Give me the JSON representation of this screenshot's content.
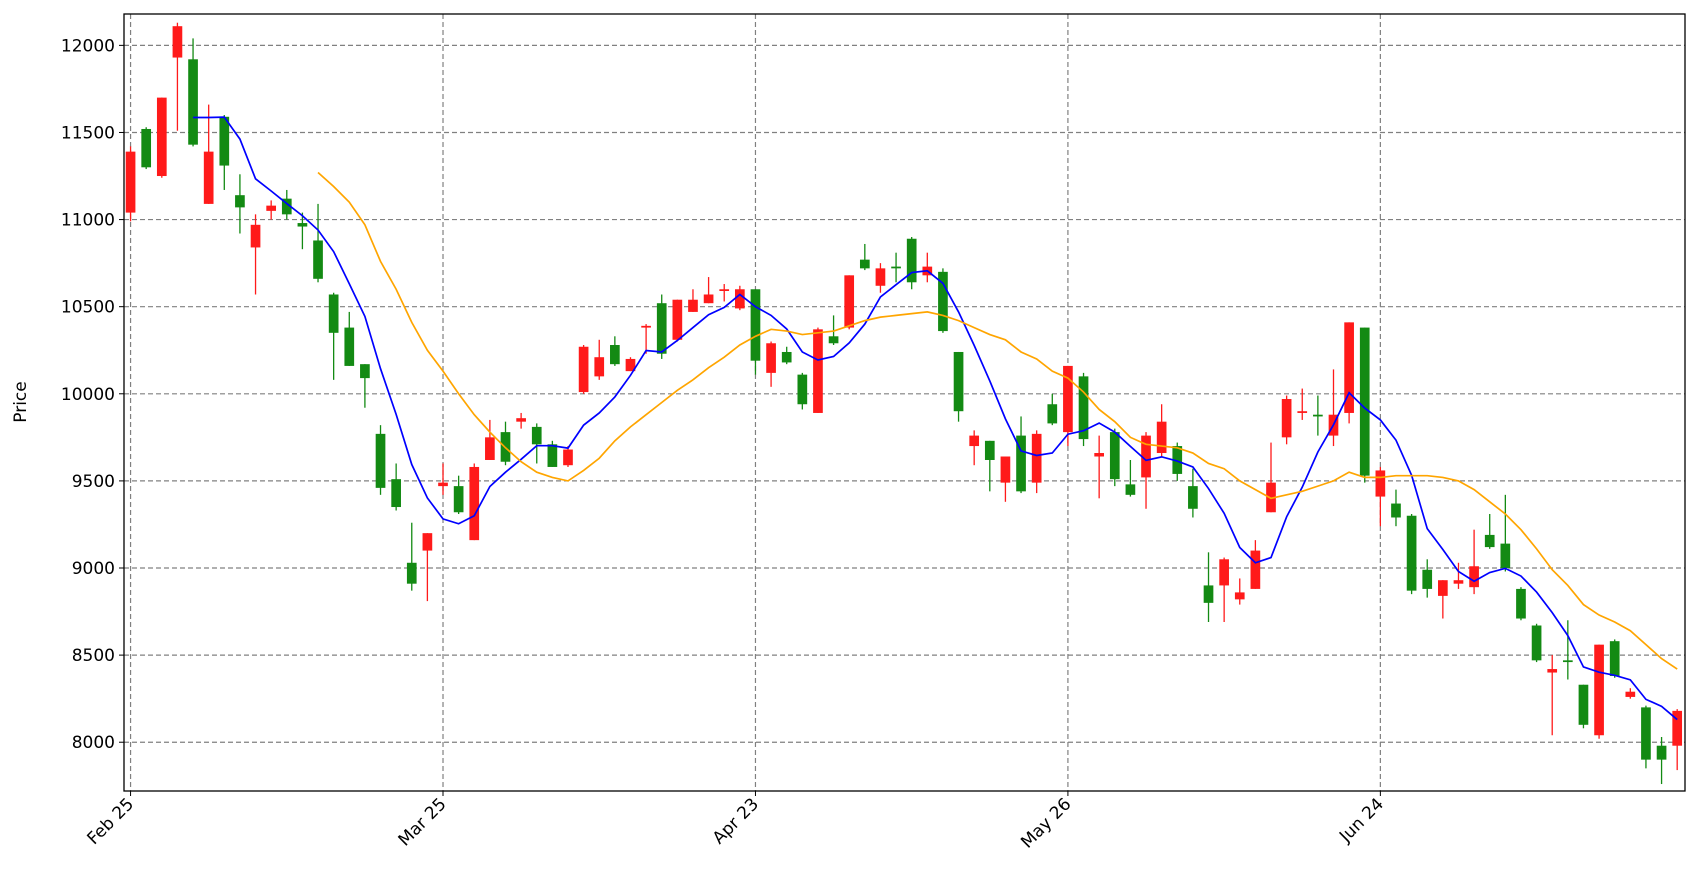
{
  "chart_data": {
    "type": "candlestick",
    "y_label": "Price",
    "categories": [
      "Feb 25",
      null,
      null,
      null,
      null,
      null,
      null,
      null,
      null,
      null,
      null,
      null,
      null,
      null,
      null,
      null,
      null,
      null,
      null,
      null,
      "Mar 25",
      null,
      null,
      null,
      null,
      null,
      null,
      null,
      null,
      null,
      null,
      null,
      null,
      null,
      null,
      null,
      null,
      null,
      null,
      null,
      "Apr 23",
      null,
      null,
      null,
      null,
      null,
      null,
      null,
      null,
      null,
      null,
      null,
      null,
      null,
      null,
      null,
      null,
      null,
      null,
      null,
      "May 26",
      null,
      null,
      null,
      null,
      null,
      null,
      null,
      null,
      null,
      null,
      null,
      null,
      null,
      null,
      null,
      null,
      null,
      null,
      null,
      "Jun 24",
      null,
      null,
      null,
      null,
      null,
      null,
      null,
      null,
      null,
      null,
      null,
      null,
      null,
      null,
      null,
      null,
      null,
      null,
      null
    ],
    "open": [
      11040,
      11520,
      11250,
      11930,
      11920,
      11090,
      11590,
      11140,
      10840,
      11050,
      11120,
      10980,
      10880,
      10570,
      10380,
      10170,
      9770,
      9510,
      9030,
      9100,
      9470,
      9470,
      9160,
      9620,
      9780,
      9840,
      9810,
      9710,
      9590,
      10010,
      10100,
      10280,
      10130,
      10380,
      10520,
      10310,
      10470,
      10520,
      10590,
      10490,
      10600,
      10120,
      10240,
      10110,
      9890,
      10330,
      10380,
      10770,
      10620,
      10730,
      10890,
      10680,
      10700,
      10240,
      9700,
      9730,
      9490,
      9760,
      9490,
      9940,
      9780,
      10100,
      9640,
      9780,
      9480,
      9520,
      9660,
      9700,
      9470,
      8900,
      8900,
      8820,
      8880,
      9320,
      9750,
      9890,
      9880,
      9760,
      9890,
      10380,
      9410,
      9370,
      9300,
      8990,
      8840,
      8910,
      8890,
      9190,
      9140,
      8880,
      8670,
      8400,
      8470,
      8330,
      8040,
      8580,
      8260,
      8200,
      7980,
      7980
    ],
    "high": [
      11420,
      11530,
      11700,
      12130,
      12040,
      11660,
      11600,
      11260,
      11030,
      11110,
      11170,
      11040,
      11090,
      10580,
      10470,
      10170,
      9820,
      9600,
      9260,
      9200,
      9600,
      9530,
      9600,
      9850,
      9840,
      9890,
      9830,
      9730,
      9700,
      10280,
      10310,
      10330,
      10210,
      10400,
      10570,
      10540,
      10600,
      10670,
      10630,
      10620,
      10600,
      10300,
      10270,
      10120,
      10380,
      10450,
      10680,
      10860,
      10750,
      10810,
      10900,
      10810,
      10720,
      10240,
      9790,
      9730,
      9640,
      9870,
      9790,
      10000,
      10160,
      10120,
      9760,
      9800,
      9620,
      9780,
      9940,
      9720,
      9570,
      9090,
      9060,
      8940,
      9160,
      9720,
      9990,
      10030,
      9990,
      10140,
      10410,
      10380,
      9580,
      9450,
      9310,
      9050,
      8930,
      9030,
      9220,
      9310,
      9420,
      8890,
      8680,
      8500,
      8700,
      8330,
      8560,
      8590,
      8310,
      8210,
      8030,
      8190
    ],
    "low": [
      10990,
      11290,
      11240,
      11510,
      11420,
      11090,
      11170,
      10920,
      10570,
      11000,
      11000,
      10830,
      10640,
      10080,
      10160,
      9920,
      9420,
      9330,
      8870,
      8810,
      9420,
      9310,
      9160,
      9620,
      9590,
      9800,
      9600,
      9580,
      9580,
      10000,
      10080,
      10160,
      10130,
      10230,
      10200,
      10300,
      10470,
      10520,
      10530,
      10480,
      10110,
      10040,
      10170,
      9910,
      9890,
      10280,
      10370,
      10710,
      10580,
      10640,
      10600,
      10640,
      10350,
      9840,
      9590,
      9440,
      9380,
      9430,
      9430,
      9820,
      9700,
      9700,
      9400,
      9470,
      9410,
      9340,
      9640,
      9500,
      9290,
      8690,
      8690,
      8790,
      8880,
      9320,
      9710,
      9850,
      9760,
      9700,
      9830,
      9490,
      9240,
      9240,
      8850,
      8830,
      8710,
      8880,
      8850,
      9110,
      8980,
      8700,
      8460,
      8040,
      8360,
      8080,
      8020,
      8370,
      8250,
      7850,
      7760,
      7840
    ],
    "close": [
      11390,
      11300,
      11700,
      12110,
      11430,
      11390,
      11310,
      11070,
      10970,
      11080,
      11030,
      10960,
      10660,
      10350,
      10160,
      10090,
      9460,
      9350,
      8910,
      9200,
      9490,
      9320,
      9580,
      9750,
      9610,
      9860,
      9710,
      9580,
      9680,
      10270,
      10210,
      10170,
      10200,
      10390,
      10230,
      10540,
      10540,
      10570,
      10600,
      10600,
      10190,
      10290,
      10180,
      9940,
      10370,
      10290,
      10680,
      10720,
      10720,
      10720,
      10640,
      10730,
      10360,
      9900,
      9760,
      9620,
      9640,
      9440,
      9770,
      9830,
      10160,
      9740,
      9660,
      9510,
      9420,
      9760,
      9840,
      9540,
      9340,
      8800,
      9050,
      8860,
      9100,
      9490,
      9970,
      9900,
      9870,
      9880,
      10410,
      9530,
      9560,
      9290,
      8870,
      8880,
      8930,
      8930,
      9010,
      9120,
      9000,
      8710,
      8470,
      8420,
      8460,
      8100,
      8560,
      8380,
      8290,
      7900,
      7900,
      8180
    ],
    "up_color": "#ff1a1a",
    "down_color": "#138a13",
    "lines": [
      {
        "color": "#0000ff",
        "values": [
          null,
          null,
          null,
          null,
          11586,
          11586,
          11588,
          11462,
          11234,
          11164,
          11092,
          11022,
          10940,
          10816,
          10632,
          10444,
          10144,
          9882,
          9594,
          9402,
          9282,
          9254,
          9300,
          9468,
          9550,
          9624,
          9702,
          9702,
          9688,
          9820,
          9890,
          9982,
          10106,
          10248,
          10240,
          10306,
          10380,
          10454,
          10496,
          10570,
          10500,
          10450,
          10372,
          10240,
          10194,
          10214,
          10292,
          10400,
          10556,
          10626,
          10696,
          10706,
          10634,
          10470,
          10278,
          10074,
          9856,
          9672,
          9646,
          9660,
          9768,
          9788,
          9832,
          9780,
          9698,
          9618,
          9638,
          9614,
          9580,
          9456,
          9314,
          9118,
          9030,
          9060,
          9294,
          9464,
          9666,
          9822,
          10006,
          9918,
          9850,
          9734,
          9532,
          9226,
          9106,
          8980,
          8924,
          8974,
          8998,
          8954,
          8862,
          8744,
          8612,
          8432,
          8402,
          8384,
          8358,
          8246,
          8206,
          8130
        ]
      },
      {
        "color": "#ffa500",
        "values": [
          null,
          null,
          null,
          null,
          null,
          null,
          null,
          null,
          null,
          null,
          null,
          null,
          11270,
          11190,
          11100,
          10970,
          10760,
          10600,
          10410,
          10250,
          10130,
          10000,
          9880,
          9780,
          9690,
          9610,
          9550,
          9520,
          9500,
          9560,
          9630,
          9730,
          9810,
          9880,
          9950,
          10020,
          10080,
          10150,
          10210,
          10280,
          10330,
          10370,
          10360,
          10340,
          10350,
          10360,
          10390,
          10420,
          10440,
          10450,
          10460,
          10470,
          10450,
          10420,
          10380,
          10340,
          10310,
          10240,
          10200,
          10130,
          10090,
          10010,
          9910,
          9840,
          9750,
          9710,
          9700,
          9690,
          9660,
          9600,
          9570,
          9500,
          9450,
          9400,
          9420,
          9440,
          9470,
          9500,
          9550,
          9520,
          9520,
          9530,
          9530,
          9530,
          9520,
          9500,
          9450,
          9380,
          9310,
          9220,
          9110,
          8990,
          8900,
          8790,
          8730,
          8690,
          8640,
          8560,
          8480,
          8420
        ]
      }
    ],
    "ylim": [
      7720,
      12180
    ],
    "yticks": [
      8000,
      8500,
      9000,
      9500,
      10000,
      10500,
      11000,
      11500,
      12000
    ],
    "grid": true
  }
}
